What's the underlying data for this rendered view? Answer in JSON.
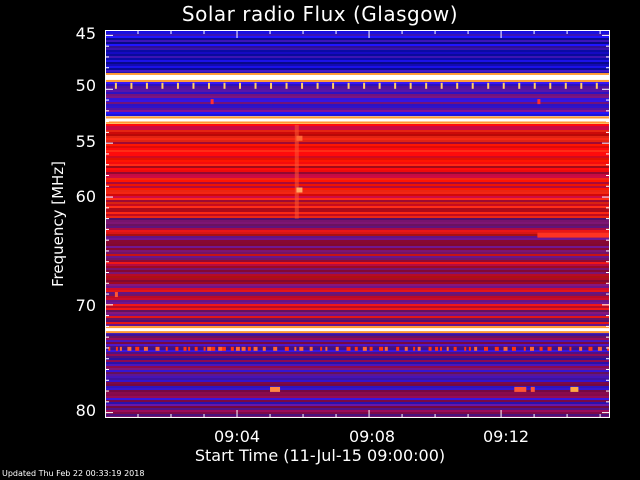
{
  "chart_data": {
    "type": "heatmap",
    "title": "Solar radio Flux (Glasgow)",
    "ylabel": "Frequency [MHz]",
    "xlabel": "Start Time (11-Jul-15 09:00:00)",
    "y_axis": {
      "range_mhz": [
        44.5,
        80.5
      ],
      "reversed": true,
      "ticks": [
        "45",
        "50",
        "55",
        "60",
        "70",
        "80"
      ],
      "tick_values": [
        45,
        50,
        55,
        60,
        70,
        80
      ]
    },
    "x_axis": {
      "range_minutes": [
        0,
        15.3
      ],
      "ticks": [
        "09:04",
        "09:08",
        "09:12"
      ],
      "tick_values": [
        4,
        8,
        12
      ]
    },
    "colormap": [
      "#000088",
      "#2222ff",
      "#6b2a8f",
      "#b01a3a",
      "#ff0000",
      "#ff8800",
      "#ffffff"
    ],
    "bands": [
      {
        "mhz_from": 44.5,
        "mhz_to": 48.5,
        "level": "blue"
      },
      {
        "mhz_from": 48.5,
        "mhz_to": 49.3,
        "level": "white"
      },
      {
        "mhz_from": 49.3,
        "mhz_to": 52.5,
        "level": "blue-purple"
      },
      {
        "mhz_from": 52.5,
        "mhz_to": 53.2,
        "level": "white"
      },
      {
        "mhz_from": 53.2,
        "mhz_to": 62.0,
        "level": "red"
      },
      {
        "mhz_from": 62.0,
        "mhz_to": 72.0,
        "level": "red-purple"
      },
      {
        "mhz_from": 72.0,
        "mhz_to": 72.6,
        "level": "white"
      },
      {
        "mhz_from": 72.6,
        "mhz_to": 80.5,
        "level": "purple-blue"
      }
    ]
  },
  "footer": "Updated Thu Feb 22 00:33:19 2018"
}
